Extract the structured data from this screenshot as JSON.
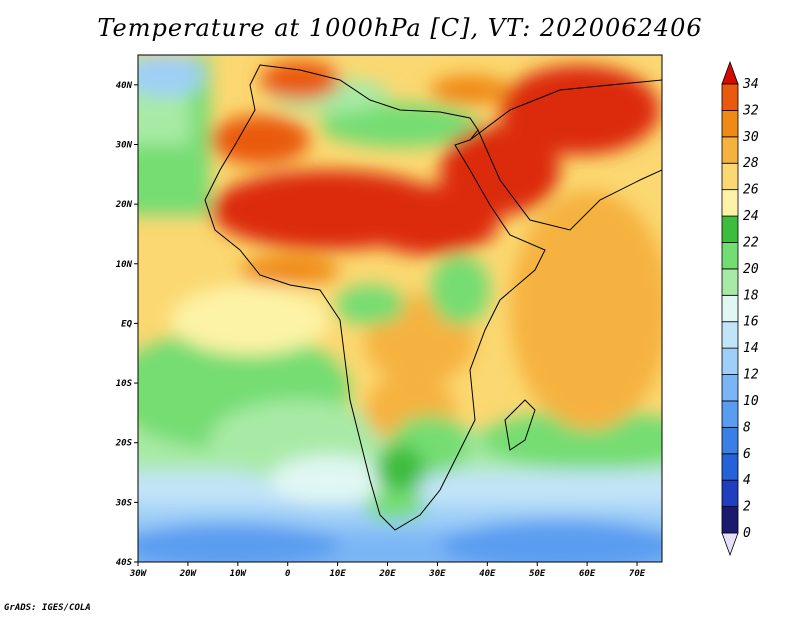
{
  "title": "Temperature at 1000hPa [C], VT: 2020062406",
  "credit": "GrADS: IGES/COLA",
  "map": {
    "lon_range": [
      -30,
      75
    ],
    "lat_range": [
      -40,
      45
    ],
    "lon_ticks": [
      {
        "value": -30,
        "label": "30W"
      },
      {
        "value": -20,
        "label": "20W"
      },
      {
        "value": -10,
        "label": "10W"
      },
      {
        "value": 0,
        "label": "0"
      },
      {
        "value": 10,
        "label": "10E"
      },
      {
        "value": 20,
        "label": "20E"
      },
      {
        "value": 30,
        "label": "30E"
      },
      {
        "value": 40,
        "label": "40E"
      },
      {
        "value": 50,
        "label": "50E"
      },
      {
        "value": 60,
        "label": "60E"
      },
      {
        "value": 70,
        "label": "70E"
      }
    ],
    "lat_ticks": [
      {
        "value": 40,
        "label": "40N"
      },
      {
        "value": 30,
        "label": "30N"
      },
      {
        "value": 20,
        "label": "20N"
      },
      {
        "value": 10,
        "label": "10N"
      },
      {
        "value": 0,
        "label": "EQ"
      },
      {
        "value": -10,
        "label": "10S"
      },
      {
        "value": -20,
        "label": "20S"
      },
      {
        "value": -30,
        "label": "30S"
      },
      {
        "value": -40,
        "label": "40S"
      }
    ]
  },
  "colorbar": {
    "levels": [
      0,
      2,
      4,
      6,
      8,
      10,
      12,
      14,
      16,
      18,
      20,
      22,
      24,
      26,
      28,
      30,
      32,
      34
    ],
    "labels": [
      "0",
      "2",
      "4",
      "6",
      "8",
      "10",
      "12",
      "14",
      "16",
      "18",
      "20",
      "22",
      "24",
      "26",
      "28",
      "30",
      "32",
      "34"
    ],
    "colors": [
      "#1a1a6e",
      "#1f3fbf",
      "#2561d9",
      "#3a7fe6",
      "#5a9cf0",
      "#7ab6f5",
      "#9fcff7",
      "#c2e4f7",
      "#e0f7f3",
      "#a8eaa5",
      "#74dd72",
      "#3dbd3d",
      "#fdf3a6",
      "#fbd871",
      "#f6b23f",
      "#f08a17",
      "#ea5a0e",
      "#dc2a08",
      "#d50b00"
    ]
  }
}
